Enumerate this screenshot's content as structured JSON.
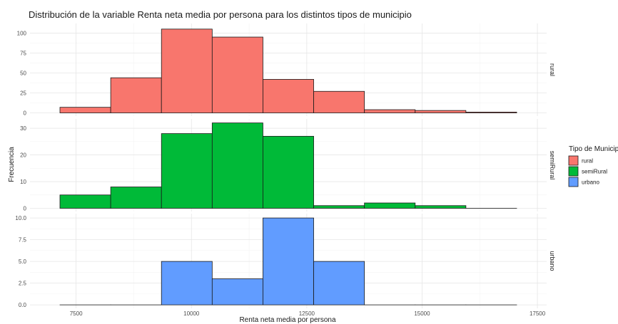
{
  "chart_data": {
    "type": "bar",
    "title": "Distribución de la variable Renta neta media por persona para los distintos tipos de municipio",
    "xlabel": "Renta neta media por persona",
    "ylabel": "Frecuencia",
    "xlim": [
      6500,
      17700
    ],
    "x_ticks": [
      7500,
      10000,
      12500,
      15000,
      17500
    ],
    "x_tick_labels": [
      "7500",
      "10000",
      "12500",
      "15000",
      "17500"
    ],
    "bin_edges": [
      7150,
      8250,
      9350,
      10450,
      11550,
      12650,
      13750,
      14850,
      15950,
      17050
    ],
    "grid": true,
    "legend": {
      "title": "Tipo de Municipio",
      "position": "right",
      "entries": [
        {
          "label": "rural",
          "color": "#F8766D"
        },
        {
          "label": "semiRural",
          "color": "#00BA38"
        },
        {
          "label": "urbano",
          "color": "#619CFF"
        }
      ]
    },
    "series": [
      {
        "name": "rural",
        "color": "#F8766D",
        "values": [
          7,
          44,
          105,
          95,
          42,
          27,
          4,
          3,
          1
        ],
        "ylim": [
          -4,
          112
        ],
        "y_ticks": [
          0,
          25,
          50,
          75,
          100
        ],
        "y_tick_labels": [
          "0",
          "25",
          "50",
          "75",
          "100"
        ]
      },
      {
        "name": "semiRural",
        "color": "#00BA38",
        "values": [
          5,
          8,
          28,
          32,
          27,
          1,
          2,
          1,
          0
        ],
        "ylim": [
          -1.2,
          33.5
        ],
        "y_ticks": [
          0,
          10,
          20,
          30
        ],
        "y_tick_labels": [
          "0",
          "10",
          "20",
          "30"
        ]
      },
      {
        "name": "urbano",
        "color": "#619CFF",
        "values": [
          0,
          0,
          5,
          3,
          10,
          5,
          0,
          0,
          0
        ],
        "ylim": [
          -0.4,
          10.5
        ],
        "y_ticks": [
          0,
          2.5,
          5,
          7.5,
          10
        ],
        "y_tick_labels": [
          "0.0",
          "2.5",
          "5.0",
          "7.5",
          "10.0"
        ]
      }
    ]
  }
}
